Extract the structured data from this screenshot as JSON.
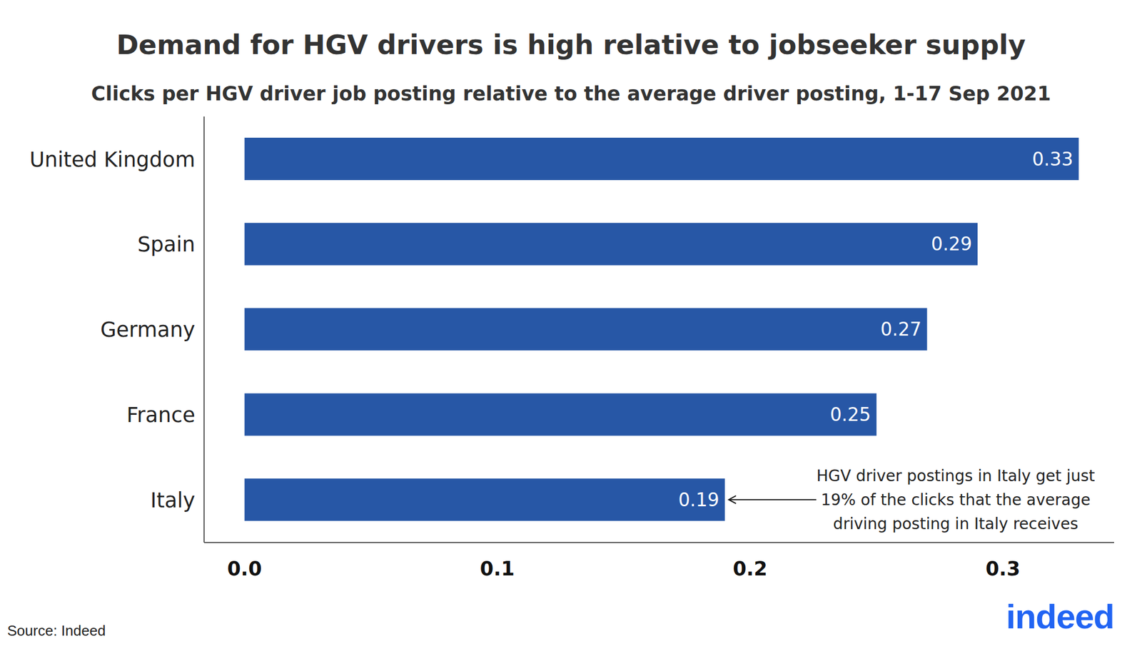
{
  "chart_data": {
    "type": "bar",
    "orientation": "horizontal",
    "title": "Demand for HGV drivers is high relative to jobseeker supply",
    "subtitle": "Clicks per HGV driver job posting relative to the average driver posting, 1-17 Sep 2021",
    "categories": [
      "United Kingdom",
      "Spain",
      "Germany",
      "France",
      "Italy"
    ],
    "values": [
      0.33,
      0.29,
      0.27,
      0.25,
      0.19
    ],
    "color": "#2757a6",
    "xlim": [
      -0.016,
      0.344
    ],
    "xticks": [
      {
        "value": 0,
        "label": "0.0"
      },
      0.1,
      0.2,
      0.3
    ],
    "grid": false,
    "data_labels": true,
    "annotation": {
      "category": "Italy",
      "text": [
        "HGV driver postings in Italy get just",
        "19% of the clicks that the average",
        "driving posting in Italy receives"
      ]
    },
    "source": "Source: Indeed",
    "logo": "indeed"
  }
}
